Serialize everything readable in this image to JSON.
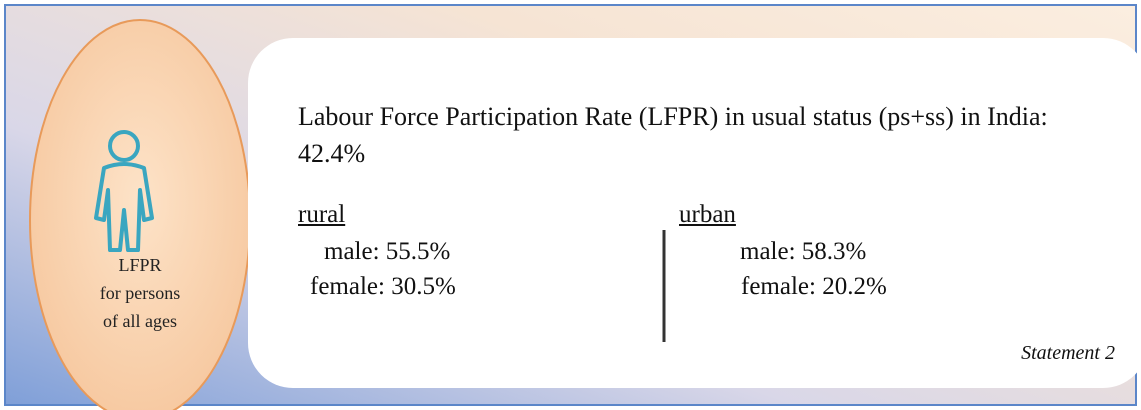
{
  "badge": {
    "lines": [
      "LFPR",
      "for persons",
      "of all ages"
    ]
  },
  "statement": "Labour Force Participation Rate (LFPR) in usual status (ps+ss) in India: 42.4%",
  "rural": {
    "heading": "rural",
    "male": "male: 55.5%",
    "female": "female: 30.5%"
  },
  "urban": {
    "heading": "urban",
    "male": "male: 58.3%",
    "female": "female: 20.2%"
  },
  "caption": "Statement 2"
}
